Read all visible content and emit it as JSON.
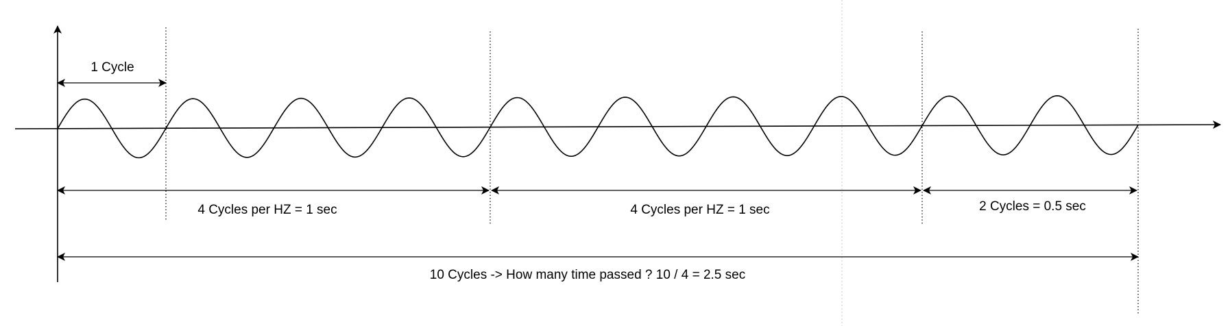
{
  "labels": {
    "one_cycle": "1 Cycle",
    "segment_1": "4 Cycles per HZ = 1 sec",
    "segment_2": "4 Cycles per HZ = 1 sec",
    "segment_3": "2 Cycles = 0.5 sec",
    "total": "10 Cycles -> How many time passed ? 10 / 4 = 2.5 sec"
  },
  "wave": {
    "total_cycles": 10
  },
  "colors": {
    "stroke": "#000000",
    "guide": "#c8c8c8",
    "background": "#ffffff"
  }
}
